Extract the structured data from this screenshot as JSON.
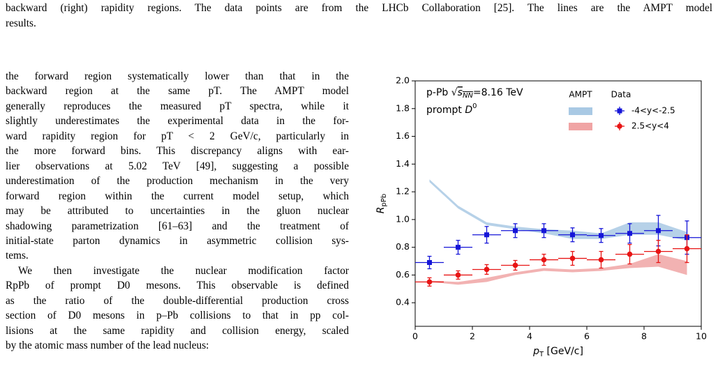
{
  "caption": {
    "lines": [
      "backward (right) rapidity regions. The data points are from the LHCb Collaboration [25]. The lines are the AMPT model",
      "results."
    ]
  },
  "body": {
    "lines": [
      "the forward region systematically lower than that in the",
      "backward region at the same pT. The AMPT model",
      "generally reproduces the measured pT spectra, while it",
      "slightly underestimates the experimental data in the for-",
      "ward rapidity region for pT < 2 GeV/c, particularly in",
      "the more forward bins. This discrepancy aligns with ear-",
      "lier observations at 5.02 TeV [49], suggesting a possible",
      "underestimation of the production mechanism in the very",
      "forward region within the current model setup, which",
      "may be attributed to uncertainties in the gluon nuclear",
      "shadowing parametrization [61–63] and the treatment of",
      "initial-state parton dynamics in asymmetric collision sys-",
      "tems.",
      "We then investigate the nuclear modification factor",
      "RpPb of prompt D0 mesons. This observable is defined",
      "as the ratio of the double-differential production cross",
      "section of D0 mesons in p–Pb collisions to that in pp col-",
      "lisions at the same rapidity and collision energy, scaled",
      "by the atomic mass number of the lead nucleus:"
    ]
  },
  "chart_data": {
    "type": "errorbar",
    "annotations": [
      [
        "p-Pb √",
        "s",
        "NN",
        "=8.16 TeV"
      ],
      [
        "prompt ",
        "D",
        "0"
      ]
    ],
    "xlabel": [
      "p",
      "T",
      " [GeV/c]"
    ],
    "ylabel": [
      "R",
      "pPb"
    ],
    "legend_titles": [
      "AMPT",
      "Data"
    ],
    "xlim": [
      0,
      10
    ],
    "ylim": [
      0.23,
      2.0
    ],
    "xticks": [
      0,
      2,
      4,
      6,
      8,
      10
    ],
    "yticks": [
      0.4,
      0.6,
      0.8,
      {
        "value": 1.0,
        "label": "1.0"
      },
      1.2,
      1.4,
      1.6,
      1.8,
      {
        "value": 2.0,
        "label": "2.0"
      }
    ],
    "x": [
      0.5,
      1.5,
      2.5,
      3.5,
      4.5,
      5.5,
      6.5,
      7.5,
      8.5,
      9.5
    ],
    "xerr": [
      0.5,
      0.5,
      0.5,
      0.5,
      0.5,
      0.5,
      0.5,
      0.5,
      0.5,
      0.5
    ],
    "series": [
      {
        "name": "-4<y<-2.5",
        "color": "#1515d8",
        "marker": "square",
        "band_color": "#a9c9e4",
        "values": [
          0.69,
          0.8,
          0.89,
          0.92,
          0.92,
          0.89,
          0.885,
          0.9,
          0.92,
          0.87
        ],
        "yerr": [
          0.045,
          0.05,
          0.06,
          0.05,
          0.05,
          0.05,
          0.05,
          0.07,
          0.11,
          0.12
        ],
        "band_lower": [
          1.27,
          1.08,
          0.96,
          0.93,
          0.9,
          0.86,
          0.86,
          0.89,
          0.89,
          0.85
        ],
        "band_upper": [
          1.29,
          1.1,
          0.98,
          0.95,
          0.93,
          0.92,
          0.9,
          0.98,
          0.98,
          0.91
        ]
      },
      {
        "name": "2.5<y<4",
        "color": "#e81515",
        "marker": "circle",
        "band_color": "#f0a4a4",
        "values": [
          0.55,
          0.6,
          0.64,
          0.67,
          0.71,
          0.72,
          0.71,
          0.75,
          0.77,
          0.79
        ],
        "yerr": [
          0.03,
          0.03,
          0.035,
          0.035,
          0.04,
          0.05,
          0.06,
          0.07,
          0.08,
          0.1
        ],
        "band_lower": [
          0.55,
          0.53,
          0.55,
          0.6,
          0.63,
          0.62,
          0.63,
          0.65,
          0.66,
          0.6
        ],
        "band_upper": [
          0.56,
          0.55,
          0.58,
          0.62,
          0.65,
          0.64,
          0.65,
          0.68,
          0.75,
          0.7
        ]
      }
    ]
  }
}
